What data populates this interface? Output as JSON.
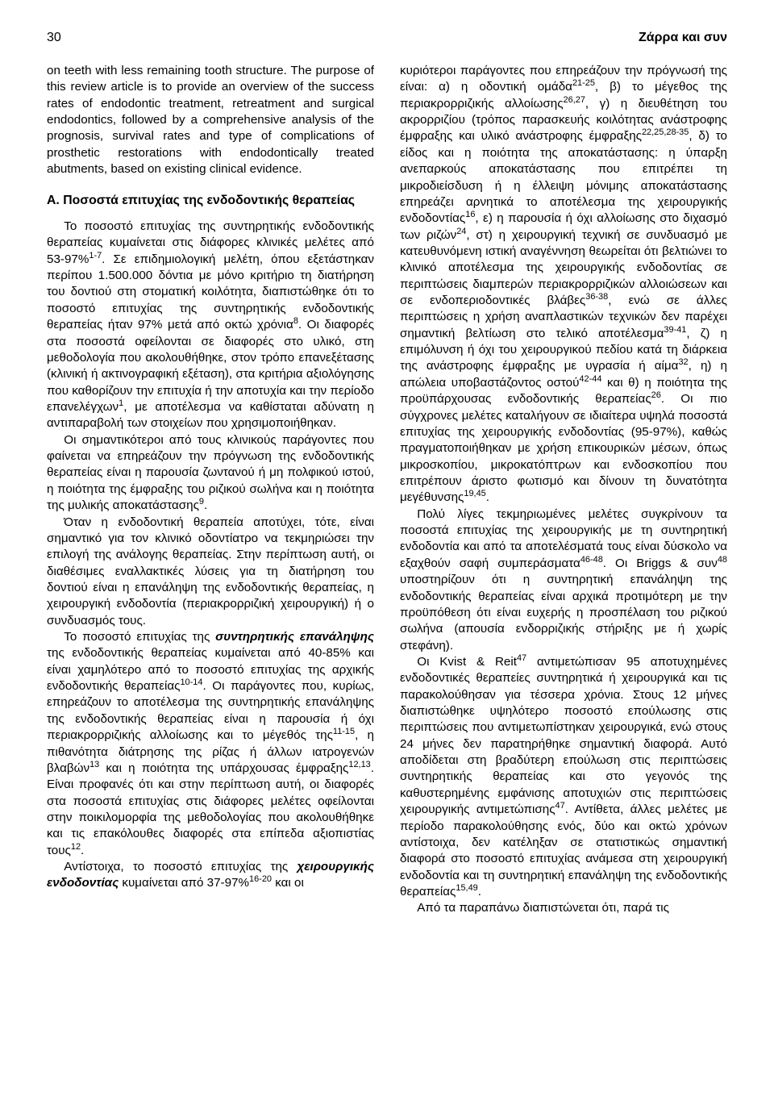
{
  "page_number": "30",
  "running_head": "Ζάρρα και συν",
  "colors": {
    "text": "#000000",
    "background": "#ffffff"
  },
  "typography": {
    "body_fontsize_pt": 11,
    "heading_fontsize_pt": 12,
    "line_height": 1.34,
    "font_family": "Arial, Helvetica, sans-serif"
  },
  "col_left": {
    "p0": "on teeth with less remaining tooth structure. The purpose of this review article is to provide an overview of the success rates of endodontic treatment, retreatment and surgical endodontics, followed by a comprehensive analysis of the prognosis, survival rates and type of complications of prosthetic restorations with endodontically treated abutments, based on existing clinical evidence.",
    "heading_letter": "Α.",
    "heading_text": "Ποσοστά επιτυχίας της ενδοδοντικής θεραπείας",
    "p1a": "Το ποσοστό επιτυχίας της συντηρητικής ενδοδοντικής θεραπείας κυμαίνεται στις διάφορες κλινικές μελέτες από 53-97%",
    "p1a_sup": "1-7",
    "p1b": ". Σε επιδημιολογική μελέτη, όπου εξετάστηκαν περίπου 1.500.000 δόντια με μόνο κριτήριο τη διατήρηση του δοντιού στη στοματική κοιλότητα, διαπιστώθηκε ότι το ποσοστό επιτυχίας της συντηρητικής ενδοδοντικής θεραπείας ήταν 97% μετά από οκτώ χρόνια",
    "p1b_sup": "8",
    "p1c": ". Οι διαφορές στα ποσοστά οφείλονται σε διαφορές στο υλικό, στη μεθοδολογία που ακολουθήθηκε, στον τρόπο επανεξέτασης (κλινική ή ακτινογραφική εξέταση), στα κριτήρια αξιολόγησης που καθορίζουν την επιτυχία ή την αποτυχία και την περίοδο επανελέγχων",
    "p1c_sup": "1",
    "p1d": ", με αποτέλεσμα να καθίσταται αδύνατη η αντιπαραβολή των στοιχείων που χρησιμοποιήθηκαν.",
    "p2a": "Οι σημαντικότεροι από τους κλινικούς παράγοντες που φαίνεται να επηρεάζουν την πρόγνωση της ενδοδοντικής θεραπείας είναι η παρουσία ζωντανού ή μη πολφικού ιστού, η ποιότητα της έμφραξης του ριζικού σωλήνα και η ποιότητα της μυλικής αποκατάστασης",
    "p2a_sup": "9",
    "p2b": ".",
    "p3": "Όταν η ενδοδοντική θεραπεία αποτύχει, τότε, είναι σημαντικό για τον κλινικό οδοντίατρο να τεκμηριώσει την επιλογή της ανάλογης θεραπείας. Στην περίπτωση αυτή, οι διαθέσιμες εναλλακτικές λύσεις για τη διατήρηση του δοντιού είναι η επανάληψη της ενδοδοντικής θεραπείας, η χειρουργική ενδοδοντία (περιακρορριζική χειρουργική) ή ο συνδυασμός τους.",
    "p4a": "Το ποσοστό επιτυχίας της ",
    "p4a_bi": "συντηρητικής επανάληψης",
    "p4b": " της ενδοδοντικής θεραπείας κυμαίνεται από 40-85% και είναι χαμηλότερο από το ποσοστό επιτυχίας της αρχικής ενδοδοντικής θεραπείας",
    "p4b_sup": "10-14",
    "p4c": ". Οι παράγοντες που, κυρίως, επηρεάζουν το αποτέλεσμα της συντηρητικής επανάληψης της ενδοδοντικής θεραπείας είναι η παρουσία ή όχι περιακρορριζικής αλλοίωσης και το μέγεθός της",
    "p4c_sup": "11-15",
    "p4d": ", η πιθανότητα διάτρησης της ρίζας ή άλλων ιατρογενών βλαβών",
    "p4d_sup": "13",
    "p4e": " και η ποιότητα της υπάρχουσας έμφραξης",
    "p4e_sup": "12,13",
    "p4f": ". Είναι προφανές ότι και στην περίπτωση αυτή, οι διαφορές στα ποσοστά επιτυχίας στις διάφορες μελέτες οφείλονται στην ποικιλομορφία της μεθοδολογίας που ακολουθήθηκε και τις επακόλουθες διαφορές στα επίπεδα αξιοπιστίας τους",
    "p4f_sup": "12",
    "p4g": ".",
    "p5a": "Αντίστοιχα, το ποσοστό επιτυχίας της ",
    "p5a_bi": "χειρουργικής ενδοδοντίας",
    "p5b": " κυμαίνεται από 37-97%",
    "p5b_sup": "16-20",
    "p5c": " και οι"
  },
  "col_right": {
    "p0a": "κυριότεροι παράγοντες που επηρεάζουν την πρόγνωσή της είναι: α) η οδοντική ομάδα",
    "p0a_sup": "21-25",
    "p0b": ", β) το μέγεθος της περιακρορριζικής αλλοίωσης",
    "p0b_sup": "26,27",
    "p0c": ", γ) η διευθέτηση του ακρορριζίου (τρόπος παρασκευής κοιλότητας ανάστροφης έμφραξης και υλικό ανάστροφης έμφραξης",
    "p0c_sup": "22,25,28-35",
    "p0d": ", δ) το είδος και η ποιότητα της αποκατάστασης: η ύπαρξη ανεπαρκούς αποκατάστασης που επιτρέπει τη μικροδιείσδυση ή η έλλειψη μόνιμης αποκατάστασης επηρεάζει αρνητικά το αποτέλεσμα της χειρουργικής ενδοδοντίας",
    "p0d_sup": "16",
    "p0e": ", ε) η παρουσία ή όχι αλλοίωσης στο διχασμό των ριζών",
    "p0e_sup": "24",
    "p0f": ", στ) η χειρουργική τεχνική σε συνδυασμό με κατευθυνόμενη ιστική αναγέννηση θεωρείται ότι βελτιώνει το κλινικό αποτέλεσμα της χειρουργικής ενδοδοντίας σε περιπτώσεις διαμπερών περιακρορριζικών αλλοιώσεων και σε ενδοπεριοδοντικές βλάβες",
    "p0f_sup": "36-38",
    "p0g": ", ενώ σε άλλες περιπτώσεις η χρήση αναπλαστικών τεχνικών δεν παρέχει σημαντική βελτίωση στο τελικό αποτέλεσμα",
    "p0g_sup": "39-41",
    "p0h": ", ζ) η επιμόλυνση ή όχι του χειρουργικού πεδίου κατά τη διάρκεια της ανάστροφης έμφραξης με υγρασία ή αίμα",
    "p0h_sup": "32",
    "p0i": ", η) η απώλεια υποβαστάζοντος οστού",
    "p0i_sup": "42-44",
    "p0j": " και θ) η ποιότητα της προϋπάρχουσας ενδοδοντικής θεραπείας",
    "p0j_sup": "26",
    "p0k": ". Οι πιο σύγχρονες μελέτες καταλήγουν σε ιδιαίτερα υψηλά ποσοστά επιτυχίας της χειρουργικής ενδοδοντίας (95-97%), καθώς πραγματοποιήθηκαν με χρήση επικουρικών μέσων, όπως μικροσκοπίου, μικροκατόπτρων και ενδοσκοπίου που επιτρέπουν άριστο φωτισμό και δίνουν τη δυνατότητα μεγέθυνσης",
    "p0k_sup": "19,45",
    "p0l": ".",
    "p1a": "Πολύ λίγες τεκμηριωμένες μελέτες συγκρίνουν τα ποσοστά επιτυχίας της χειρουργικής με τη συντηρητική ενδοδοντία και από τα αποτελέσματά τους είναι δύσκολο να εξαχθούν σαφή συμπεράσματα",
    "p1a_sup": "46-48",
    "p1b": ". Οι Briggs & συν",
    "p1b_sup": "48",
    "p1c": " υποστηρίζουν ότι η συντηρητική επανάληψη της ενδοδοντικής θεραπείας είναι αρχικά προτιμότερη με την προϋπόθεση ότι είναι ευχερής η προσπέλαση του ριζικού σωλήνα (απουσία ενδορριζικής στήριξης με ή χωρίς στεφάνη).",
    "p2a": "Οι Kvist & Reit",
    "p2a_sup": "47",
    "p2b": " αντιμετώπισαν 95 αποτυχημένες ενδοδοντικές θεραπείες συντηρητικά ή χειρουργικά και τις παρακολούθησαν για τέσσερα χρόνια. Στους 12 μήνες διαπιστώθηκε υψηλότερο ποσοστό επούλωσης στις περιπτώσεις που αντιμετωπίστηκαν χειρουργικά, ενώ στους 24 μήνες δεν παρατηρήθηκε σημαντική διαφορά. Αυτό αποδίδεται στη βραδύτερη επούλωση στις περιπτώσεις συντηρητικής θεραπείας και στο γεγονός της καθυστερημένης εμφάνισης αποτυχιών στις περιπτώσεις χειρουργικής αντιμετώπισης",
    "p2b_sup": "47",
    "p2c": ". Αντίθετα, άλλες μελέτες με περίοδο παρακολούθησης ενός, δύο και  οκτώ χρόνων αντίστοιχα, δεν κατέληξαν σε στατιστικώς σημαντική διαφορά στο ποσοστό επιτυχίας ανάμεσα στη χειρουργική ενδοδοντία και τη συντηρητική επανάληψη της ενδοδοντικής θεραπείας",
    "p2c_sup": "15,49",
    "p2d": ".",
    "p3": "Από τα παραπάνω διαπιστώνεται ότι, παρά τις"
  }
}
